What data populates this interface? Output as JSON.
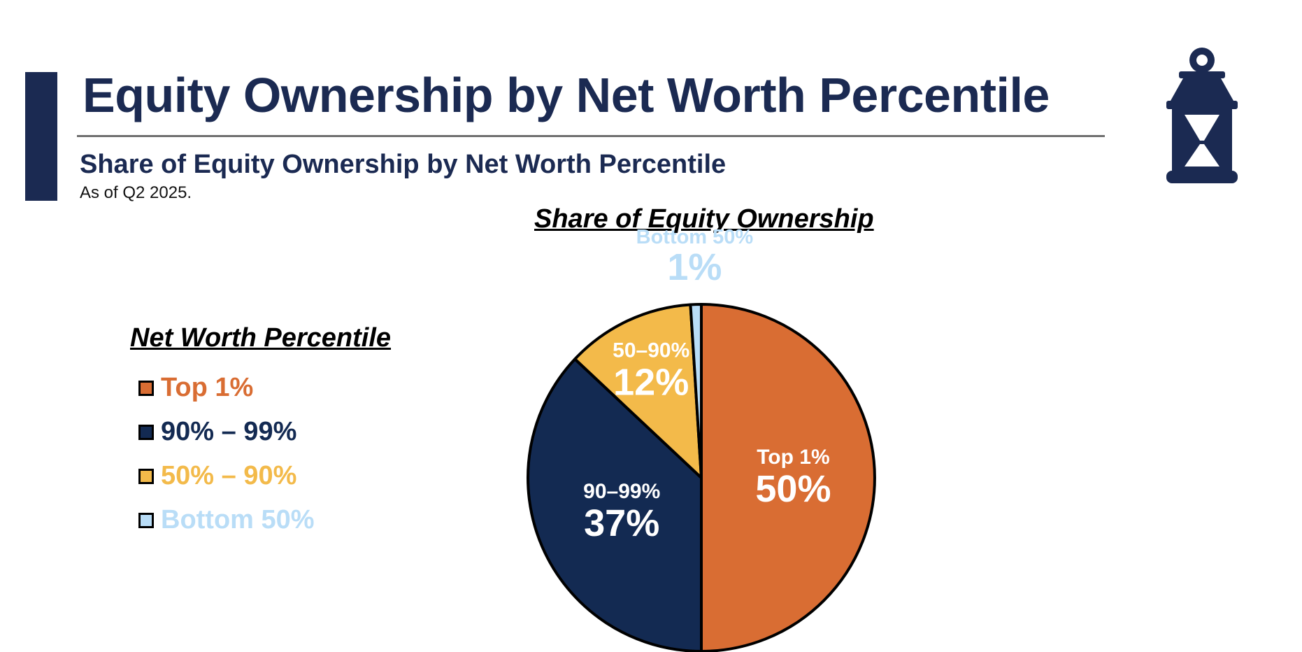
{
  "header": {
    "title": "Equity Ownership by Net Worth Percentile",
    "subtitle": "Share of Equity Ownership by Net Worth Percentile",
    "note": "As of Q2 2025."
  },
  "logo": {
    "icon": "lantern-icon",
    "color": "#1b2a52"
  },
  "legend": {
    "title": "Net Worth Percentile",
    "items": [
      {
        "label": "Top 1%",
        "color": "#d96d33"
      },
      {
        "label": "90% – 99%",
        "color": "#132a52"
      },
      {
        "label": "50% – 90%",
        "color": "#f3ba4a"
      },
      {
        "label": "Bottom 50%",
        "color": "#b9ddf7"
      }
    ]
  },
  "chart_data": {
    "type": "pie",
    "title": "Share of Equity Ownership",
    "slices": [
      {
        "name": "Top 1%",
        "value": 50,
        "label": "Top 1%",
        "value_label": "50%",
        "color": "#d96d33",
        "text_color": "#ffffff"
      },
      {
        "name": "90–99%",
        "value": 37,
        "label": "90–99%",
        "value_label": "37%",
        "color": "#132a52",
        "text_color": "#ffffff"
      },
      {
        "name": "50–90%",
        "value": 12,
        "label": "50–90%",
        "value_label": "12%",
        "color": "#f3ba4a",
        "text_color": "#ffffff"
      },
      {
        "name": "Bottom 50%",
        "value": 1,
        "label": "Bottom 50%",
        "value_label": "1%",
        "color": "#b9ddf7",
        "text_color": "#b9ddf7"
      }
    ],
    "start": "12 o'clock",
    "direction": "clockwise",
    "legend_position": "left"
  }
}
